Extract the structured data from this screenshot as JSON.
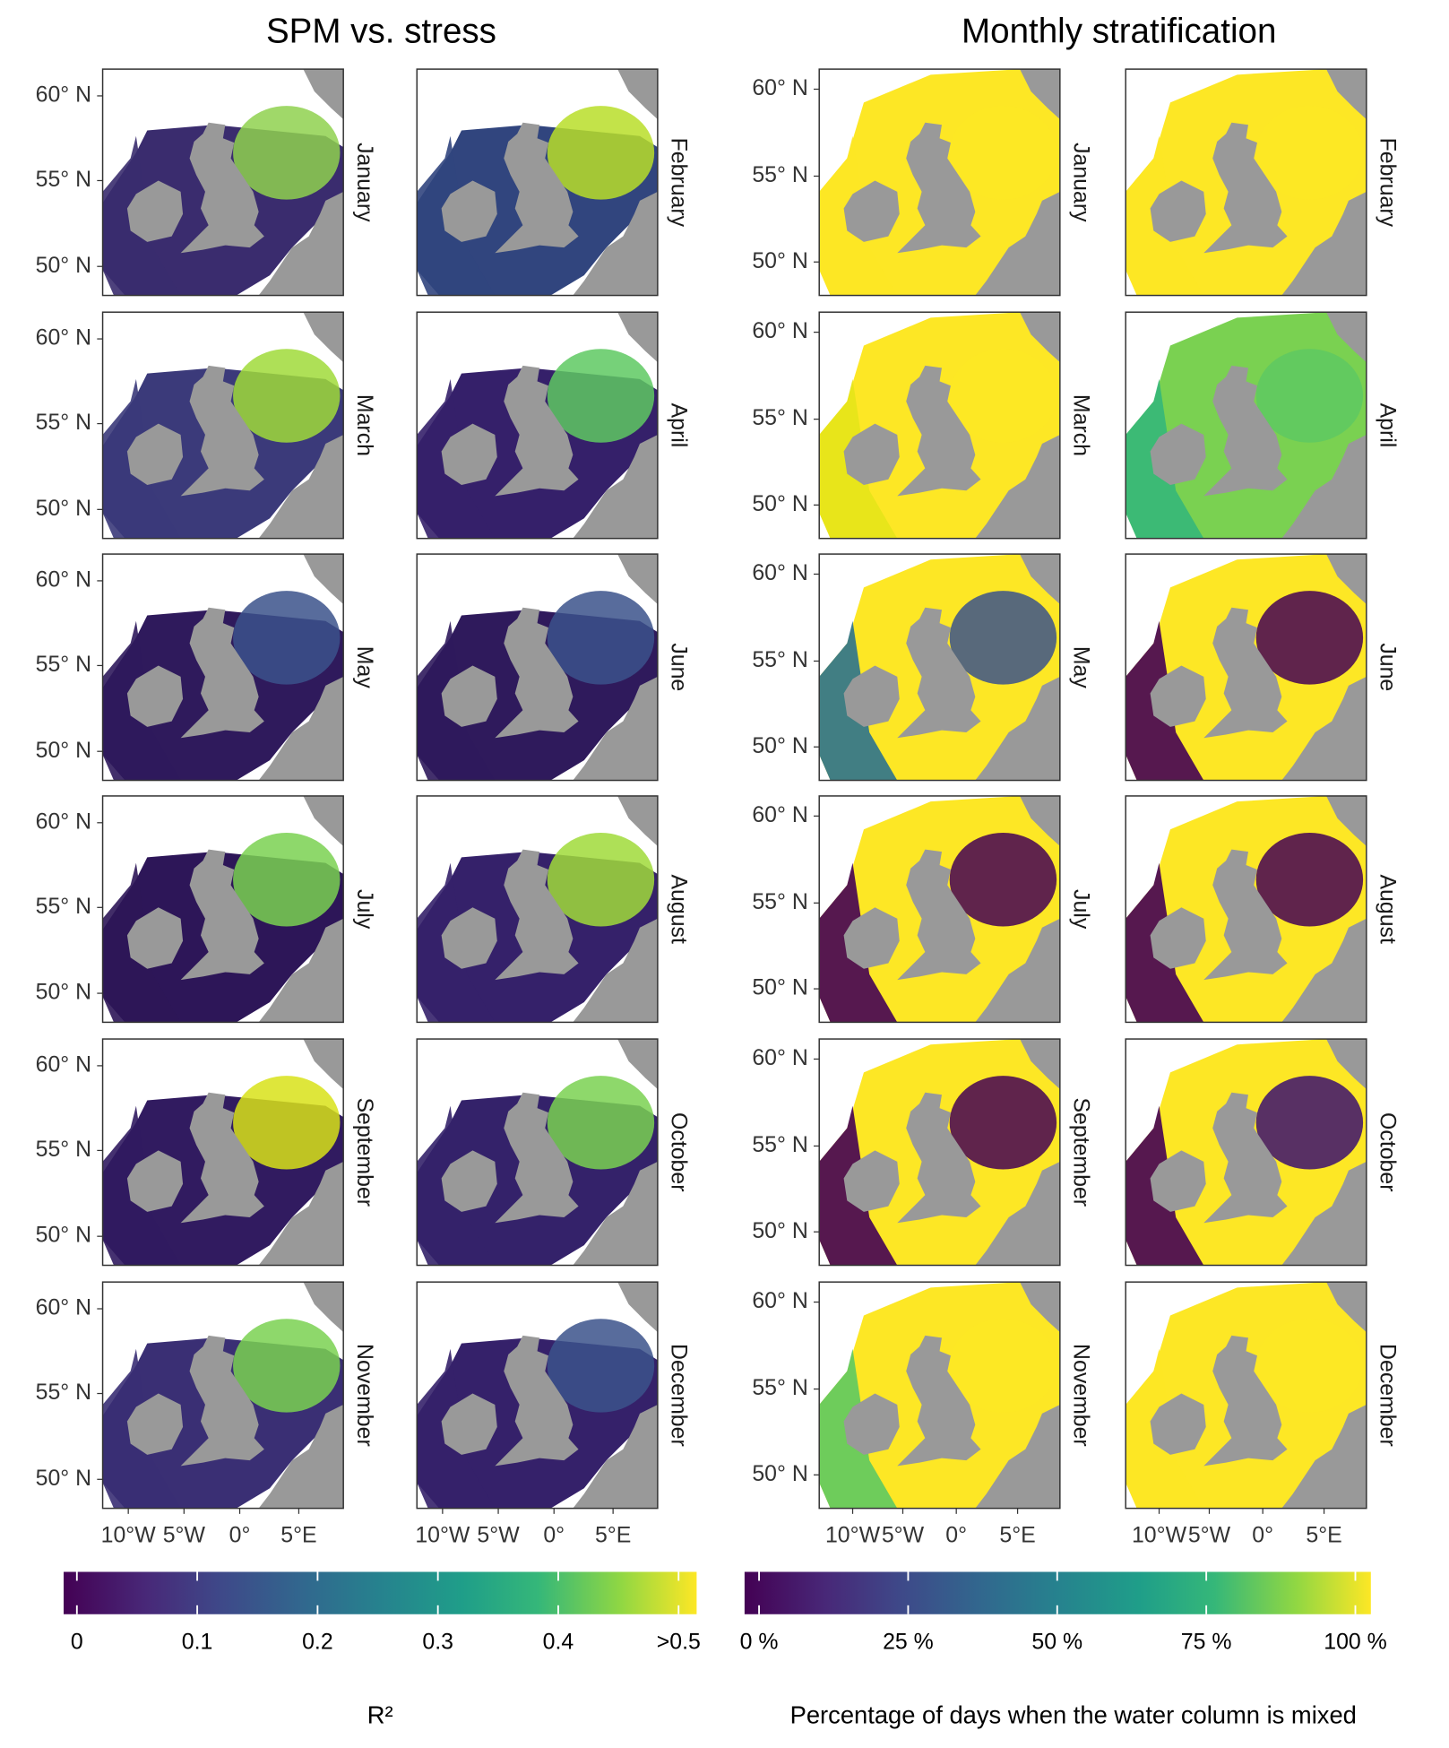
{
  "titles": {
    "left": "SPM vs. stress",
    "right": "Monthly stratification"
  },
  "left_panels": [
    {
      "month": "January",
      "color": "#3a2c6e",
      "west": "#3a2c6e",
      "accent": "#8fd14f"
    },
    {
      "month": "February",
      "color": "#31457e",
      "west": "#31457e",
      "accent": "#b8de29"
    },
    {
      "month": "March",
      "color": "#3b3a7a",
      "west": "#3b3a7a",
      "accent": "#a0da39"
    },
    {
      "month": "April",
      "color": "#35206a",
      "west": "#35206a",
      "accent": "#5ec962"
    },
    {
      "month": "May",
      "color": "#2f1a5c",
      "west": "#2f1a5c",
      "accent": "#3b528b"
    },
    {
      "month": "June",
      "color": "#2f1a5c",
      "west": "#2f1a5c",
      "accent": "#3b528b"
    },
    {
      "month": "July",
      "color": "#2d1658",
      "west": "#2d1658",
      "accent": "#7ad151"
    },
    {
      "month": "August",
      "color": "#35216a",
      "west": "#35216a",
      "accent": "#a0da39"
    },
    {
      "month": "September",
      "color": "#311b60",
      "west": "#311b60",
      "accent": "#d8e219"
    },
    {
      "month": "October",
      "color": "#34226a",
      "west": "#34226a",
      "accent": "#7ad151"
    },
    {
      "month": "November",
      "color": "#3a2f74",
      "west": "#3a2f74",
      "accent": "#7ad151"
    },
    {
      "month": "December",
      "color": "#35216a",
      "west": "#35216a",
      "accent": "#3b528b"
    }
  ],
  "right_panels": [
    {
      "month": "January",
      "color": "#fde725",
      "west": "#fde725",
      "accent": "#fde725"
    },
    {
      "month": "February",
      "color": "#fde725",
      "west": "#fde725",
      "accent": "#fde725"
    },
    {
      "month": "March",
      "color": "#fde725",
      "west": "#e5e419",
      "accent": "#fde725"
    },
    {
      "month": "April",
      "color": "#7ad151",
      "west": "#35b779",
      "accent": "#5ec962"
    },
    {
      "month": "May",
      "color": "#fde725",
      "west": "#2c728e",
      "accent": "#3b528b"
    },
    {
      "month": "June",
      "color": "#fde725",
      "west": "#440154",
      "accent": "#440154"
    },
    {
      "month": "July",
      "color": "#fde725",
      "west": "#440154",
      "accent": "#440154"
    },
    {
      "month": "August",
      "color": "#fde725",
      "west": "#440154",
      "accent": "#440154"
    },
    {
      "month": "September",
      "color": "#fde725",
      "west": "#440154",
      "accent": "#440154"
    },
    {
      "month": "October",
      "color": "#fde725",
      "west": "#440154",
      "accent": "#3b0f70"
    },
    {
      "month": "November",
      "color": "#fde725",
      "west": "#5ec962",
      "accent": "#fde725"
    },
    {
      "month": "December",
      "color": "#fde725",
      "west": "#fde725",
      "accent": "#fde725"
    }
  ],
  "lat_labels": [
    "60° N",
    "55° N",
    "50° N"
  ],
  "lon_labels": [
    "10°W",
    "5°W",
    "0°",
    "5°E"
  ],
  "colorbars": [
    {
      "title": "R²",
      "lim": [
        -0.011,
        0.515
      ],
      "ticks": [
        0,
        0.1,
        0.2,
        0.3,
        0.4,
        {
          "value": 0.5,
          "label": ">0.5"
        }
      ]
    },
    {
      "title": "Percentage of days when the water column is mixed",
      "lim": [
        -2.43,
        102.6
      ],
      "ticks": [
        {
          "value": 0,
          "label": "0 %"
        },
        {
          "value": 25,
          "label": "25 %"
        },
        {
          "value": 50,
          "label": "50 %"
        },
        {
          "value": 75,
          "label": "75 %"
        },
        {
          "value": 100,
          "label": "100 %"
        }
      ]
    }
  ]
}
